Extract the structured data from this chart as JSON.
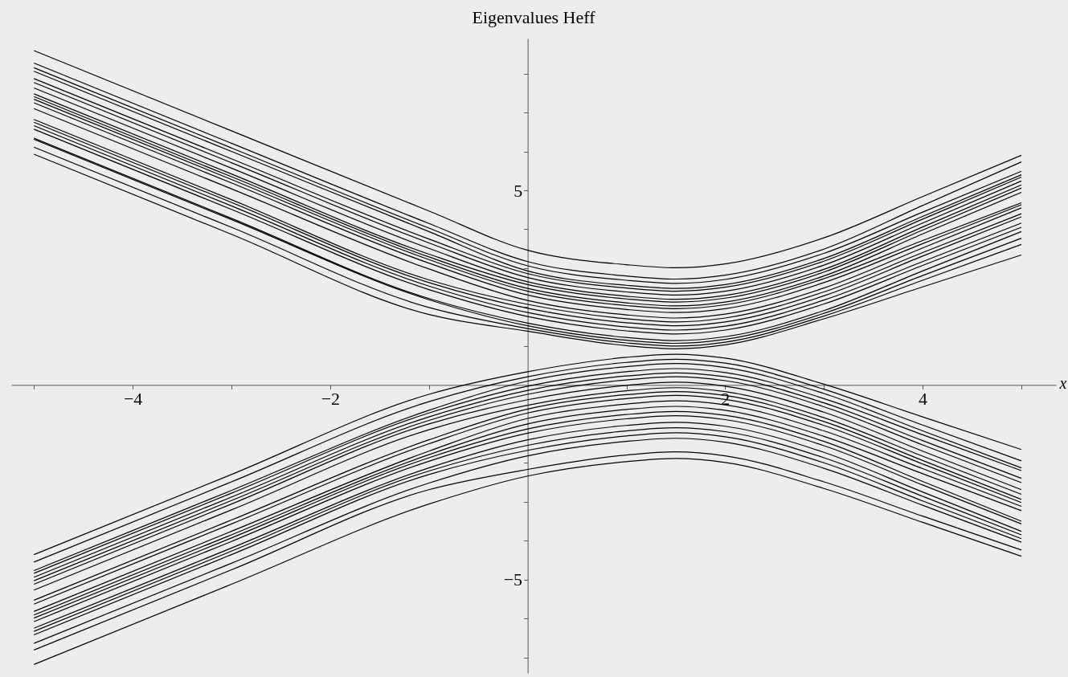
{
  "chart_data": {
    "type": "line",
    "title": "Eigenvalues Heff",
    "xlabel": "x",
    "x": [
      -5,
      -3,
      -1,
      0,
      1,
      1.5,
      2,
      3,
      4,
      5
    ],
    "xlim": [
      -5.23,
      5.35
    ],
    "ylim": [
      -7.4,
      8.9
    ],
    "xticks": [
      -4,
      -2,
      2,
      4,
      {
        "value": -5,
        "label": null
      },
      {
        "value": -3,
        "label": null
      },
      {
        "value": -1,
        "label": null
      },
      {
        "value": 1,
        "label": null
      },
      {
        "value": 3,
        "label": null
      },
      {
        "value": 5,
        "label": null
      }
    ],
    "yticks": [
      -5,
      5,
      {
        "value": -7,
        "label": null
      },
      {
        "value": -6,
        "label": null
      },
      {
        "value": -4,
        "label": null
      },
      {
        "value": -3,
        "label": null
      },
      {
        "value": -2,
        "label": null
      },
      {
        "value": -1,
        "label": null
      },
      {
        "value": 1,
        "label": null
      },
      {
        "value": 2,
        "label": null
      },
      {
        "value": 3,
        "label": null
      },
      {
        "value": 4,
        "label": null
      },
      {
        "value": 6,
        "label": null
      },
      {
        "value": 7,
        "label": null
      },
      {
        "value": 8,
        "label": null
      }
    ],
    "series": [
      {
        "color": "#000000",
        "values": [
          8.59,
          6.53,
          4.47,
          3.46,
          3.09,
          3.01,
          3.11,
          3.78,
          4.84,
          5.9
        ]
      },
      {
        "color": "#000000",
        "values": [
          8.27,
          6.21,
          4.15,
          3.17,
          2.8,
          2.72,
          2.82,
          3.49,
          4.61,
          5.73
        ]
      },
      {
        "color": "#000000",
        "values": [
          8.15,
          6.09,
          4.03,
          3.06,
          2.69,
          2.61,
          2.71,
          3.38,
          4.44,
          5.49
        ]
      },
      {
        "color": "#000000",
        "values": [
          8.06,
          6.0,
          3.94,
          2.93,
          2.56,
          2.48,
          2.58,
          3.25,
          4.33,
          5.4
        ]
      },
      {
        "color": "#000000",
        "values": [
          7.87,
          5.81,
          3.75,
          2.86,
          2.49,
          2.41,
          2.51,
          3.18,
          4.26,
          5.34
        ]
      },
      {
        "color": "#000000",
        "values": [
          7.77,
          5.71,
          3.65,
          2.76,
          2.39,
          2.31,
          2.41,
          3.08,
          4.16,
          5.24
        ]
      },
      {
        "color": "#000000",
        "values": [
          7.63,
          5.57,
          3.51,
          2.65,
          2.28,
          2.2,
          2.3,
          2.97,
          4.06,
          5.14
        ]
      },
      {
        "color": "#000000",
        "values": [
          7.48,
          5.42,
          3.36,
          2.58,
          2.21,
          2.13,
          2.23,
          2.9,
          3.98,
          5.06
        ]
      },
      {
        "color": "#000000",
        "values": [
          7.41,
          5.35,
          3.29,
          2.48,
          2.11,
          2.03,
          2.13,
          2.8,
          3.88,
          4.95
        ]
      },
      {
        "color": "#000000",
        "values": [
          7.34,
          5.28,
          3.22,
          2.41,
          2.04,
          1.96,
          2.06,
          2.73,
          3.71,
          4.68
        ]
      },
      {
        "color": "#000000",
        "values": [
          7.25,
          5.19,
          3.13,
          2.31,
          1.94,
          1.86,
          1.96,
          2.63,
          3.63,
          4.63
        ]
      },
      {
        "color": "#000000",
        "values": [
          7.1,
          5.04,
          2.98,
          2.17,
          1.8,
          1.72,
          1.82,
          2.49,
          3.52,
          4.55
        ]
      },
      {
        "color": "#000000",
        "values": [
          6.82,
          4.76,
          2.7,
          2.07,
          1.7,
          1.62,
          1.72,
          2.39,
          3.4,
          4.4
        ]
      },
      {
        "color": "#000000",
        "values": [
          6.75,
          4.69,
          2.63,
          1.97,
          1.6,
          1.52,
          1.62,
          2.29,
          3.31,
          4.32
        ]
      },
      {
        "color": "#000000",
        "values": [
          6.66,
          4.6,
          2.54,
          1.86,
          1.49,
          1.41,
          1.51,
          2.18,
          3.17,
          4.16
        ]
      },
      {
        "color": "#000000",
        "values": [
          6.57,
          4.51,
          2.45,
          1.76,
          1.39,
          1.31,
          1.41,
          2.08,
          3.07,
          4.05
        ]
      },
      {
        "color": "#000000",
        "values": [
          6.34,
          4.28,
          2.22,
          1.59,
          1.22,
          1.14,
          1.24,
          1.91,
          2.93,
          3.94
        ]
      },
      {
        "color": "#000000",
        "values": [
          6.31,
          4.25,
          2.19,
          1.52,
          1.15,
          1.07,
          1.17,
          1.84,
          2.81,
          3.77
        ]
      },
      {
        "color": "#000000",
        "values": [
          6.11,
          4.05,
          1.99,
          1.45,
          1.08,
          1.0,
          1.1,
          1.77,
          2.69,
          3.61
        ]
      },
      {
        "color": "#000000",
        "values": [
          5.93,
          3.87,
          1.81,
          1.38,
          1.01,
          0.93,
          1.03,
          1.7,
          2.52,
          3.34
        ]
      },
      {
        "color": "#000000",
        "values": [
          -4.36,
          -2.3,
          -0.24,
          0.34,
          0.71,
          0.79,
          0.69,
          0.02,
          -0.82,
          -1.66
        ]
      },
      {
        "color": "#000000",
        "values": [
          -4.55,
          -2.49,
          -0.43,
          0.21,
          0.58,
          0.66,
          0.56,
          -0.11,
          -1.03,
          -1.95
        ]
      },
      {
        "color": "#000000",
        "values": [
          -4.77,
          -2.71,
          -0.65,
          0.1,
          0.47,
          0.55,
          0.45,
          -0.22,
          -1.18,
          -2.13
        ]
      },
      {
        "color": "#000000",
        "values": [
          -4.84,
          -2.78,
          -0.72,
          -0.03,
          0.34,
          0.42,
          0.32,
          -0.35,
          -1.28,
          -2.2
        ]
      },
      {
        "color": "#000000",
        "values": [
          -4.94,
          -2.88,
          -0.82,
          -0.14,
          0.23,
          0.31,
          0.21,
          -0.46,
          -1.43,
          -2.4
        ]
      },
      {
        "color": "#000000",
        "values": [
          -5.03,
          -2.97,
          -0.91,
          -0.24,
          0.13,
          0.21,
          0.11,
          -0.56,
          -1.54,
          -2.51
        ]
      },
      {
        "color": "#000000",
        "values": [
          -5.12,
          -3.06,
          -1.0,
          -0.38,
          -0.01,
          0.07,
          -0.03,
          -0.7,
          -1.7,
          -2.69
        ]
      },
      {
        "color": "#000000",
        "values": [
          -5.27,
          -3.21,
          -1.15,
          -0.52,
          -0.15,
          -0.07,
          -0.17,
          -0.84,
          -1.83,
          -2.81
        ]
      },
      {
        "color": "#000000",
        "values": [
          -5.53,
          -3.47,
          -1.41,
          -0.62,
          -0.25,
          -0.17,
          -0.27,
          -0.94,
          -1.94,
          -2.94
        ]
      },
      {
        "color": "#000000",
        "values": [
          -5.63,
          -3.57,
          -1.51,
          -0.72,
          -0.35,
          -0.27,
          -0.37,
          -1.04,
          -2.03,
          -3.02
        ]
      },
      {
        "color": "#000000",
        "values": [
          -5.82,
          -3.76,
          -1.7,
          -0.86,
          -0.49,
          -0.41,
          -0.51,
          -1.18,
          -2.15,
          -3.12
        ]
      },
      {
        "color": "#000000",
        "values": [
          -5.91,
          -3.85,
          -1.79,
          -1.0,
          -0.63,
          -0.55,
          -0.65,
          -1.32,
          -2.28,
          -3.23
        ]
      },
      {
        "color": "#000000",
        "values": [
          -5.99,
          -3.93,
          -1.87,
          -1.13,
          -0.76,
          -0.68,
          -0.78,
          -1.45,
          -2.48,
          -3.5
        ]
      },
      {
        "color": "#000000",
        "values": [
          -6.08,
          -4.02,
          -1.96,
          -1.24,
          -0.87,
          -0.79,
          -0.89,
          -1.56,
          -2.57,
          -3.57
        ]
      },
      {
        "color": "#000000",
        "values": [
          -6.25,
          -4.19,
          -2.13,
          -1.41,
          -1.04,
          -0.96,
          -1.06,
          -1.73,
          -2.75,
          -3.76
        ]
      },
      {
        "color": "#000000",
        "values": [
          -6.33,
          -4.27,
          -2.21,
          -1.55,
          -1.18,
          -1.1,
          -1.2,
          -1.87,
          -2.86,
          -3.85
        ]
      },
      {
        "color": "#000000",
        "values": [
          -6.42,
          -4.36,
          -2.3,
          -1.68,
          -1.31,
          -1.23,
          -1.33,
          -2.0,
          -2.98,
          -3.95
        ]
      },
      {
        "color": "#000000",
        "values": [
          -6.64,
          -4.58,
          -2.52,
          -1.82,
          -1.45,
          -1.37,
          -1.47,
          -2.14,
          -3.09,
          -4.04
        ]
      },
      {
        "color": "#000000",
        "values": [
          -6.81,
          -4.75,
          -2.69,
          -2.17,
          -1.8,
          -1.72,
          -1.82,
          -2.49,
          -3.37,
          -4.24
        ]
      },
      {
        "color": "#000000",
        "values": [
          -7.18,
          -5.12,
          -3.06,
          -2.34,
          -1.97,
          -1.89,
          -1.99,
          -2.66,
          -3.53,
          -4.4
        ]
      }
    ]
  }
}
